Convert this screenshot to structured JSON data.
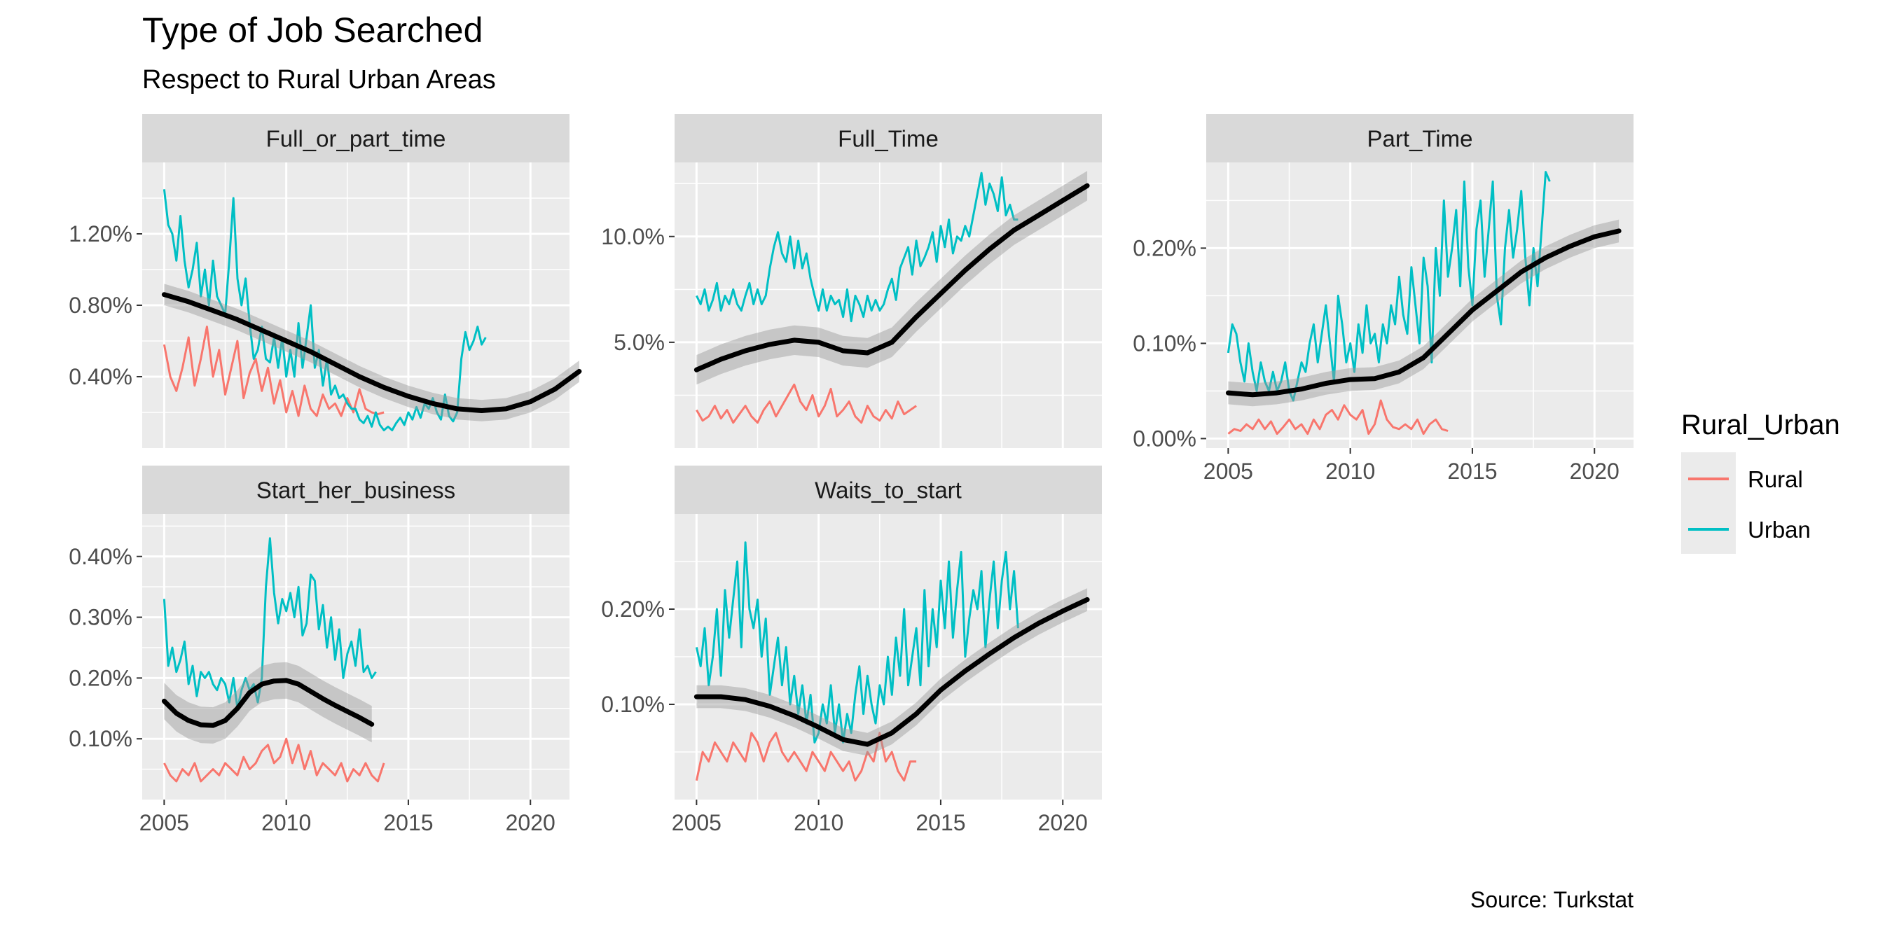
{
  "chart_data": {
    "type": "line",
    "title": "Type of Job Searched",
    "subtitle": "Respect to Rural Urban Areas",
    "caption": "Source: Turkstat",
    "legend": {
      "title": "Rural_Urban",
      "placement": "right",
      "entries": [
        {
          "name": "Rural",
          "color": "#F8766D"
        },
        {
          "name": "Urban",
          "color": "#00BFC4"
        }
      ]
    },
    "colors": {
      "Rural": "#F8766D",
      "Urban": "#00BFC4",
      "smooth": "#000000",
      "ribbon": "#999999",
      "panel_bg": "#EBEBEB",
      "strip_bg": "#D9D9D9"
    },
    "x_ticks": [
      2005,
      2010,
      2015,
      2020
    ],
    "x_range": [
      2004.1,
      2021.6
    ],
    "grid": true,
    "panels": [
      {
        "name": "Full_or_part_time",
        "ylim": [
          0.0,
          1.6
        ],
        "yticks": [
          0.4,
          0.8,
          1.2
        ],
        "ytick_labels": [
          "0.40%",
          "0.80%",
          "1.20%"
        ],
        "series": [
          {
            "name": "Urban",
            "x_start": 2005.0,
            "x_step": 0.1667,
            "values": [
              1.45,
              1.25,
              1.2,
              1.05,
              1.3,
              1.05,
              0.9,
              1.0,
              1.15,
              0.85,
              1.0,
              0.8,
              1.05,
              0.85,
              0.8,
              0.75,
              1.05,
              1.4,
              0.95,
              0.8,
              0.95,
              0.7,
              0.5,
              0.55,
              0.68,
              0.5,
              0.48,
              0.62,
              0.45,
              0.62,
              0.4,
              0.55,
              0.4,
              0.7,
              0.45,
              0.62,
              0.8,
              0.45,
              0.55,
              0.35,
              0.5,
              0.3,
              0.35,
              0.28,
              0.3,
              0.25,
              0.22,
              0.22,
              0.16,
              0.14,
              0.18,
              0.12,
              0.2,
              0.13,
              0.1,
              0.12,
              0.1,
              0.14,
              0.17,
              0.13,
              0.2,
              0.16,
              0.23,
              0.17,
              0.25,
              0.22,
              0.28,
              0.2,
              0.16,
              0.3,
              0.18,
              0.15,
              0.2,
              0.5,
              0.65,
              0.55,
              0.6,
              0.68,
              0.58,
              0.62
            ]
          },
          {
            "name": "Rural",
            "x_start": 2005.0,
            "x_step": 0.25,
            "values": [
              0.58,
              0.4,
              0.32,
              0.45,
              0.62,
              0.35,
              0.5,
              0.68,
              0.4,
              0.55,
              0.3,
              0.45,
              0.6,
              0.28,
              0.42,
              0.5,
              0.32,
              0.45,
              0.25,
              0.38,
              0.2,
              0.32,
              0.18,
              0.35,
              0.22,
              0.18,
              0.3,
              0.22,
              0.25,
              0.18,
              0.28,
              0.2,
              0.33,
              0.22,
              0.2,
              0.19,
              0.2
            ]
          },
          {
            "name": "Smooth",
            "x_start": 2005.0,
            "x_step": 1.0,
            "values": [
              0.86,
              0.82,
              0.77,
              0.72,
              0.66,
              0.6,
              0.54,
              0.47,
              0.4,
              0.34,
              0.29,
              0.25,
              0.22,
              0.21,
              0.22,
              0.26,
              0.33,
              0.43
            ],
            "band": 0.06
          }
        ]
      },
      {
        "name": "Full_Time",
        "ylim": [
          0.0,
          13.5
        ],
        "yticks": [
          5.0,
          10.0
        ],
        "ytick_labels": [
          "5.0%",
          "10.0%"
        ],
        "series": [
          {
            "name": "Urban",
            "x_start": 2005.0,
            "x_step": 0.1667,
            "values": [
              7.2,
              6.8,
              7.5,
              6.5,
              7.0,
              7.8,
              6.5,
              7.2,
              6.8,
              7.5,
              6.8,
              6.5,
              7.2,
              7.8,
              6.8,
              7.5,
              6.8,
              7.2,
              8.5,
              9.5,
              10.2,
              9.2,
              8.8,
              10.0,
              8.5,
              9.8,
              8.5,
              9.2,
              8.0,
              7.2,
              6.5,
              7.5,
              6.5,
              7.2,
              6.8,
              7.0,
              6.2,
              7.5,
              6.0,
              7.2,
              6.8,
              6.2,
              7.2,
              6.5,
              7.0,
              6.5,
              6.8,
              7.5,
              8.0,
              7.0,
              8.5,
              9.0,
              9.5,
              8.2,
              9.8,
              8.6,
              9.0,
              9.5,
              10.2,
              8.8,
              10.5,
              9.5,
              10.8,
              9.2,
              10.0,
              9.8,
              10.5,
              10.0,
              11.0,
              12.0,
              13.0,
              11.5,
              12.5,
              12.0,
              11.2,
              12.8,
              11.0,
              11.5,
              10.8,
              10.8
            ]
          },
          {
            "name": "Rural",
            "x_start": 2005.0,
            "x_step": 0.25,
            "values": [
              1.8,
              1.3,
              1.5,
              2.0,
              1.4,
              1.8,
              1.2,
              1.6,
              2.0,
              1.5,
              1.2,
              1.8,
              2.2,
              1.5,
              2.0,
              2.5,
              3.0,
              2.2,
              1.8,
              2.5,
              1.5,
              2.0,
              2.8,
              1.5,
              1.8,
              2.2,
              1.5,
              1.2,
              2.0,
              1.5,
              1.3,
              1.8,
              1.4,
              2.2,
              1.6,
              1.8,
              2.0
            ]
          },
          {
            "name": "Smooth",
            "x_start": 2005.0,
            "x_step": 1.0,
            "values": [
              3.7,
              4.2,
              4.6,
              4.9,
              5.1,
              5.0,
              4.6,
              4.5,
              5.0,
              6.2,
              7.3,
              8.4,
              9.4,
              10.3,
              11.0,
              11.7,
              12.4
            ],
            "band": 0.7
          }
        ]
      },
      {
        "name": "Part_Time",
        "ylim": [
          -0.01,
          0.29
        ],
        "yticks": [
          0.0,
          0.1,
          0.2
        ],
        "ytick_labels": [
          "0.00%",
          "0.10%",
          "0.20%"
        ],
        "series": [
          {
            "name": "Urban",
            "x_start": 2005.0,
            "x_step": 0.1667,
            "values": [
              0.09,
              0.12,
              0.11,
              0.08,
              0.06,
              0.1,
              0.07,
              0.05,
              0.08,
              0.06,
              0.05,
              0.07,
              0.05,
              0.06,
              0.08,
              0.05,
              0.04,
              0.06,
              0.08,
              0.07,
              0.1,
              0.12,
              0.08,
              0.11,
              0.14,
              0.1,
              0.06,
              0.15,
              0.12,
              0.08,
              0.1,
              0.07,
              0.12,
              0.09,
              0.14,
              0.1,
              0.11,
              0.08,
              0.12,
              0.1,
              0.14,
              0.12,
              0.17,
              0.13,
              0.11,
              0.18,
              0.14,
              0.1,
              0.19,
              0.16,
              0.08,
              0.2,
              0.15,
              0.25,
              0.17,
              0.2,
              0.24,
              0.16,
              0.27,
              0.18,
              0.14,
              0.22,
              0.25,
              0.17,
              0.22,
              0.27,
              0.15,
              0.12,
              0.2,
              0.24,
              0.19,
              0.22,
              0.26,
              0.19,
              0.14,
              0.2,
              0.16,
              0.22,
              0.28,
              0.27
            ]
          },
          {
            "name": "Rural",
            "x_start": 2005.0,
            "x_step": 0.25,
            "values": [
              0.005,
              0.01,
              0.008,
              0.015,
              0.01,
              0.02,
              0.01,
              0.018,
              0.005,
              0.012,
              0.02,
              0.01,
              0.015,
              0.005,
              0.02,
              0.01,
              0.025,
              0.03,
              0.02,
              0.035,
              0.025,
              0.02,
              0.03,
              0.005,
              0.015,
              0.04,
              0.02,
              0.012,
              0.01,
              0.015,
              0.01,
              0.02,
              0.005,
              0.015,
              0.02,
              0.01,
              0.008
            ]
          },
          {
            "name": "Smooth",
            "x_start": 2005.0,
            "x_step": 1.0,
            "values": [
              0.048,
              0.046,
              0.048,
              0.052,
              0.058,
              0.062,
              0.063,
              0.07,
              0.085,
              0.11,
              0.135,
              0.155,
              0.175,
              0.19,
              0.202,
              0.212,
              0.218
            ],
            "band": 0.012
          }
        ]
      },
      {
        "name": "Start_her_business",
        "ylim": [
          0.0,
          0.47
        ],
        "yticks": [
          0.1,
          0.2,
          0.3,
          0.4
        ],
        "ytick_labels": [
          "0.10%",
          "0.20%",
          "0.30%",
          "0.40%"
        ],
        "series": [
          {
            "name": "Urban",
            "x_start": 2005.0,
            "x_step": 0.1667,
            "values": [
              0.33,
              0.22,
              0.25,
              0.21,
              0.23,
              0.26,
              0.19,
              0.22,
              0.17,
              0.21,
              0.2,
              0.21,
              0.19,
              0.18,
              0.2,
              0.19,
              0.16,
              0.2,
              0.15,
              0.18,
              0.2,
              0.18,
              0.19,
              0.16,
              0.2,
              0.35,
              0.43,
              0.34,
              0.29,
              0.33,
              0.31,
              0.34,
              0.3,
              0.35,
              0.27,
              0.29,
              0.37,
              0.36,
              0.28,
              0.32,
              0.25,
              0.3,
              0.23,
              0.28,
              0.2,
              0.24,
              0.26,
              0.22,
              0.28,
              0.21,
              0.22,
              0.2,
              0.21
            ]
          },
          {
            "name": "Rural",
            "x_start": 2005.0,
            "x_step": 0.25,
            "values": [
              0.06,
              0.04,
              0.03,
              0.05,
              0.04,
              0.06,
              0.03,
              0.04,
              0.05,
              0.04,
              0.06,
              0.05,
              0.04,
              0.07,
              0.05,
              0.06,
              0.08,
              0.09,
              0.06,
              0.07,
              0.1,
              0.06,
              0.09,
              0.05,
              0.08,
              0.04,
              0.06,
              0.05,
              0.04,
              0.06,
              0.03,
              0.05,
              0.04,
              0.06,
              0.04,
              0.03,
              0.06
            ]
          },
          {
            "name": "Smooth",
            "x_start": 2005.0,
            "x_step": 0.5,
            "values": [
              0.162,
              0.142,
              0.13,
              0.123,
              0.122,
              0.13,
              0.15,
              0.176,
              0.19,
              0.195,
              0.196,
              0.19,
              0.178,
              0.166,
              0.155,
              0.145,
              0.135,
              0.124
            ],
            "band": 0.03
          }
        ]
      },
      {
        "name": "Waits_to_start",
        "ylim": [
          0.0,
          0.3
        ],
        "yticks": [
          0.1,
          0.2
        ],
        "ytick_labels": [
          "0.10%",
          "0.20%"
        ],
        "series": [
          {
            "name": "Urban",
            "x_start": 2005.0,
            "x_step": 0.1667,
            "values": [
              0.16,
              0.14,
              0.18,
              0.12,
              0.15,
              0.2,
              0.13,
              0.22,
              0.17,
              0.21,
              0.25,
              0.16,
              0.27,
              0.2,
              0.18,
              0.21,
              0.15,
              0.19,
              0.11,
              0.14,
              0.17,
              0.12,
              0.16,
              0.1,
              0.13,
              0.09,
              0.12,
              0.08,
              0.11,
              0.06,
              0.07,
              0.1,
              0.08,
              0.12,
              0.07,
              0.1,
              0.06,
              0.09,
              0.07,
              0.11,
              0.14,
              0.09,
              0.13,
              0.1,
              0.08,
              0.12,
              0.1,
              0.15,
              0.11,
              0.17,
              0.13,
              0.2,
              0.12,
              0.15,
              0.18,
              0.12,
              0.22,
              0.14,
              0.2,
              0.16,
              0.23,
              0.18,
              0.25,
              0.17,
              0.22,
              0.26,
              0.15,
              0.19,
              0.22,
              0.2,
              0.24,
              0.16,
              0.21,
              0.25,
              0.18,
              0.23,
              0.26,
              0.2,
              0.24,
              0.18
            ]
          },
          {
            "name": "Rural",
            "x_start": 2005.0,
            "x_step": 0.25,
            "values": [
              0.02,
              0.05,
              0.04,
              0.06,
              0.05,
              0.04,
              0.06,
              0.05,
              0.04,
              0.07,
              0.06,
              0.04,
              0.06,
              0.07,
              0.05,
              0.04,
              0.05,
              0.04,
              0.03,
              0.05,
              0.04,
              0.03,
              0.05,
              0.04,
              0.03,
              0.04,
              0.02,
              0.03,
              0.05,
              0.04,
              0.07,
              0.04,
              0.05,
              0.03,
              0.02,
              0.04,
              0.04
            ]
          },
          {
            "name": "Smooth",
            "x_start": 2005.0,
            "x_step": 1.0,
            "values": [
              0.108,
              0.108,
              0.105,
              0.098,
              0.088,
              0.076,
              0.063,
              0.058,
              0.07,
              0.09,
              0.115,
              0.135,
              0.153,
              0.17,
              0.185,
              0.198,
              0.21
            ],
            "band": 0.012
          }
        ]
      }
    ]
  }
}
